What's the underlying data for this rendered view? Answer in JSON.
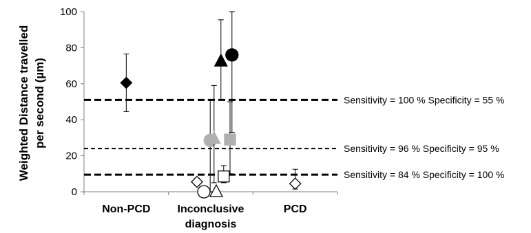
{
  "chart_data": {
    "type": "scatter",
    "title": "",
    "xlabel": "",
    "ylabel_lines": [
      "Weighted  Distance travelled",
      "per second (µm)"
    ],
    "ylim": [
      0,
      100
    ],
    "yticks": [
      "0",
      "20",
      "40",
      "60",
      "80",
      "100"
    ],
    "categories": [
      [
        "Non-PCD"
      ],
      [
        "Inconclusive",
        "diagnosis"
      ],
      [
        "PCD"
      ]
    ],
    "grid": false,
    "thresholds": [
      {
        "y": 51,
        "label": "Sensitivity = 100 % Specificity = 55 %",
        "dash": "bold"
      },
      {
        "y": 24,
        "label": "Sensitivity = 96 % Specificity = 95 %",
        "dash": "thin"
      },
      {
        "y": 9.5,
        "label": "Sensitivity = 84 % Specificity = 100 %",
        "dash": "bold"
      }
    ],
    "points": [
      {
        "category": 0,
        "offset": 0,
        "y": 60.5,
        "err_low": 44.5,
        "err_high": 76.5,
        "marker": "diamond",
        "fill": "#000000",
        "stroke": "#000000"
      },
      {
        "category": 1,
        "offset": 0.37,
        "y": 72.5,
        "err_low": 51,
        "err_high": 95.5,
        "marker": "triangle",
        "fill": "#000000",
        "stroke": "#000000"
      },
      {
        "category": 1,
        "offset": 0.77,
        "y": 76,
        "err_low": 33,
        "err_high": 100,
        "marker": "circle",
        "fill": "#000000",
        "stroke": "#000000"
      },
      {
        "category": 1,
        "offset": -0.02,
        "y": 28.5,
        "err_low": 0,
        "err_high": 51,
        "marker": "circle",
        "fill": "#b0b0b0",
        "stroke": "#b0b0b0"
      },
      {
        "category": 1,
        "offset": 0.12,
        "y": 29.5,
        "err_low": 5,
        "err_high": 59,
        "marker": "triangle",
        "fill": "#b0b0b0",
        "stroke": "#b0b0b0"
      },
      {
        "category": 1,
        "offset": 0.7,
        "y": 29,
        "err_low": 10,
        "err_high": 50,
        "marker": "square",
        "fill": "#b0b0b0",
        "stroke": "#b0b0b0"
      },
      {
        "category": 1,
        "offset": -0.5,
        "y": 5.5,
        "err_low": 3.5,
        "err_high": 7.5,
        "marker": "diamond",
        "fill": "#ffffff",
        "stroke": "#000000"
      },
      {
        "category": 1,
        "offset": -0.25,
        "y": 0,
        "err_low": 0,
        "err_high": 0,
        "marker": "circle",
        "fill": "#ffffff",
        "stroke": "#000000"
      },
      {
        "category": 1,
        "offset": 0.2,
        "y": 0,
        "err_low": 0,
        "err_high": 0,
        "marker": "triangle",
        "fill": "#ffffff",
        "stroke": "#000000"
      },
      {
        "category": 1,
        "offset": 0.47,
        "y": 8.5,
        "err_low": 5,
        "err_high": 14.5,
        "marker": "square",
        "fill": "#ffffff",
        "stroke": "#000000"
      },
      {
        "category": 2,
        "offset": 0,
        "y": 4.5,
        "err_low": 1.5,
        "err_high": 12.5,
        "marker": "diamond",
        "fill": "#ffffff",
        "stroke": "#000000"
      }
    ]
  }
}
